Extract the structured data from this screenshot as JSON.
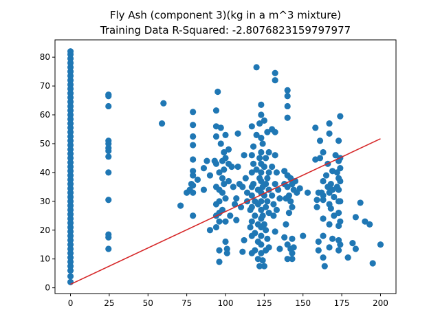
{
  "chart_data": {
    "type": "scatter",
    "title": "Fly Ash (component 3)(kg in a m^3 mixture)",
    "subtitle": "Training Data R-Squared: -2.8076823159797977",
    "xlabel": "",
    "ylabel": "",
    "xlim": [
      -10,
      210
    ],
    "ylim": [
      -2,
      86
    ],
    "xticks": [
      0,
      25,
      50,
      75,
      100,
      125,
      150,
      175,
      200
    ],
    "yticks": [
      0,
      10,
      20,
      30,
      40,
      50,
      60,
      70,
      80
    ],
    "grid": false,
    "legend": "none",
    "colors": {
      "points": "#1f77b4",
      "fit_line": "#d62728"
    },
    "series": [
      {
        "kind": "scatter",
        "points": [
          [
            0,
            2
          ],
          [
            0,
            4
          ],
          [
            0,
            6
          ],
          [
            0,
            7.5
          ],
          [
            0,
            9
          ],
          [
            0,
            10.5
          ],
          [
            0,
            12
          ],
          [
            0,
            13.5
          ],
          [
            0,
            15
          ],
          [
            0,
            16.5
          ],
          [
            0,
            18
          ],
          [
            0,
            19.5
          ],
          [
            0,
            21
          ],
          [
            0,
            22.5
          ],
          [
            0,
            24
          ],
          [
            0,
            25.5
          ],
          [
            0,
            27
          ],
          [
            0,
            28.5
          ],
          [
            0,
            30
          ],
          [
            0,
            31.5
          ],
          [
            0,
            33
          ],
          [
            0,
            34.5
          ],
          [
            0,
            36
          ],
          [
            0,
            37.5
          ],
          [
            0,
            39
          ],
          [
            0,
            40.5
          ],
          [
            0,
            42
          ],
          [
            0,
            43.5
          ],
          [
            0,
            45
          ],
          [
            0,
            46.5
          ],
          [
            0,
            48
          ],
          [
            0,
            49.5
          ],
          [
            0,
            51
          ],
          [
            0,
            52.5
          ],
          [
            0,
            54
          ],
          [
            0,
            55.5
          ],
          [
            0,
            57
          ],
          [
            0,
            58.5
          ],
          [
            0,
            60
          ],
          [
            0,
            61.5
          ],
          [
            0,
            63
          ],
          [
            0,
            64.5
          ],
          [
            0,
            66
          ],
          [
            0,
            67.5
          ],
          [
            0,
            69
          ],
          [
            0,
            70.5
          ],
          [
            0,
            72
          ],
          [
            0,
            73.5
          ],
          [
            0,
            75
          ],
          [
            0,
            76.5
          ],
          [
            0,
            78
          ],
          [
            0,
            79.5
          ],
          [
            0,
            81
          ],
          [
            0,
            82
          ],
          [
            24.5,
            13.5
          ],
          [
            24.5,
            17.5
          ],
          [
            24.5,
            18.5
          ],
          [
            24.5,
            30.5
          ],
          [
            24.5,
            40
          ],
          [
            24.5,
            45.5
          ],
          [
            24.5,
            47.5
          ],
          [
            24.5,
            48.5
          ],
          [
            24.5,
            50
          ],
          [
            24.5,
            51
          ],
          [
            24.5,
            63
          ],
          [
            24.5,
            66.5
          ],
          [
            24.5,
            67
          ],
          [
            59,
            57
          ],
          [
            60,
            64
          ],
          [
            71,
            28.5
          ],
          [
            75,
            33
          ],
          [
            77,
            34
          ],
          [
            78,
            36
          ],
          [
            79,
            25
          ],
          [
            79,
            39
          ],
          [
            79,
            44.5
          ],
          [
            79,
            49.5
          ],
          [
            79,
            52.5
          ],
          [
            79,
            56.5
          ],
          [
            79,
            61
          ],
          [
            79,
            40.5
          ],
          [
            79,
            35.5
          ],
          [
            79,
            33
          ],
          [
            82,
            37.5
          ],
          [
            86,
            41.5
          ],
          [
            86,
            34
          ],
          [
            88,
            44
          ],
          [
            90,
            39
          ],
          [
            90,
            20
          ],
          [
            93,
            44
          ],
          [
            94,
            61.5
          ],
          [
            94,
            56
          ],
          [
            94,
            52.5
          ],
          [
            94,
            43
          ],
          [
            94,
            35
          ],
          [
            94,
            29
          ],
          [
            94,
            25
          ],
          [
            94,
            21
          ],
          [
            95,
            68
          ],
          [
            96,
            40
          ],
          [
            96,
            34
          ],
          [
            96,
            30
          ],
          [
            96,
            26
          ],
          [
            96,
            23
          ],
          [
            96,
            13
          ],
          [
            96,
            9
          ],
          [
            97,
            55.5
          ],
          [
            97,
            50
          ],
          [
            98,
            44
          ],
          [
            98,
            38
          ],
          [
            98,
            33
          ],
          [
            98,
            27
          ],
          [
            99,
            47
          ],
          [
            99,
            41
          ],
          [
            99,
            36
          ],
          [
            100,
            53
          ],
          [
            100,
            45
          ],
          [
            100,
            31
          ],
          [
            100,
            23
          ],
          [
            100,
            16
          ],
          [
            101,
            13.5
          ],
          [
            101,
            12
          ],
          [
            102,
            48
          ],
          [
            102,
            43
          ],
          [
            102,
            37
          ],
          [
            103,
            25
          ],
          [
            104,
            42
          ],
          [
            105,
            35
          ],
          [
            106,
            29
          ],
          [
            107,
            31
          ],
          [
            107,
            23.5
          ],
          [
            108,
            53.5
          ],
          [
            108,
            42
          ],
          [
            109,
            36
          ],
          [
            110,
            28
          ],
          [
            111,
            35
          ],
          [
            111,
            12.5
          ],
          [
            112,
            16.5
          ],
          [
            112,
            46
          ],
          [
            113,
            38
          ],
          [
            114,
            33
          ],
          [
            114,
            30
          ],
          [
            116,
            27
          ],
          [
            116,
            21
          ],
          [
            117,
            56
          ],
          [
            117,
            46
          ],
          [
            117,
            40
          ],
          [
            117,
            35
          ],
          [
            117,
            32
          ],
          [
            117,
            28
          ],
          [
            117,
            23
          ],
          [
            117,
            18
          ],
          [
            117,
            12
          ],
          [
            118,
            49
          ],
          [
            118,
            43
          ],
          [
            118,
            36
          ],
          [
            119,
            30
          ],
          [
            119,
            25
          ],
          [
            119,
            19
          ],
          [
            119,
            13
          ],
          [
            120,
            76.5
          ],
          [
            120,
            53
          ],
          [
            120,
            41
          ],
          [
            121,
            34
          ],
          [
            121,
            29
          ],
          [
            121,
            22
          ],
          [
            121,
            16
          ],
          [
            121,
            10
          ],
          [
            122,
            7.5
          ],
          [
            122,
            57
          ],
          [
            122,
            45
          ],
          [
            122,
            38
          ],
          [
            123,
            63.5
          ],
          [
            123,
            60
          ],
          [
            123,
            52
          ],
          [
            123,
            47
          ],
          [
            123,
            43
          ],
          [
            123,
            40
          ],
          [
            123,
            37
          ],
          [
            123,
            33
          ],
          [
            123,
            30
          ],
          [
            123,
            27
          ],
          [
            123,
            24
          ],
          [
            123,
            21
          ],
          [
            123,
            18
          ],
          [
            123,
            15
          ],
          [
            123,
            12
          ],
          [
            124,
            50
          ],
          [
            124,
            35
          ],
          [
            124,
            25
          ],
          [
            124,
            9.5
          ],
          [
            125,
            58
          ],
          [
            125,
            42
          ],
          [
            125,
            32
          ],
          [
            125,
            22
          ],
          [
            125,
            7.5
          ],
          [
            126,
            45
          ],
          [
            126,
            36
          ],
          [
            126,
            28
          ],
          [
            126,
            20
          ],
          [
            126,
            13
          ],
          [
            127,
            54
          ],
          [
            127,
            38
          ],
          [
            127,
            30
          ],
          [
            127,
            17
          ],
          [
            128,
            47
          ],
          [
            128,
            40
          ],
          [
            128,
            34
          ],
          [
            128,
            26
          ],
          [
            128,
            14
          ],
          [
            130,
            55
          ],
          [
            130,
            42
          ],
          [
            130,
            32
          ],
          [
            131,
            29
          ],
          [
            131,
            25
          ],
          [
            132,
            74.5
          ],
          [
            132,
            72
          ],
          [
            132,
            54
          ],
          [
            132,
            46
          ],
          [
            132,
            36
          ],
          [
            132,
            19.5
          ],
          [
            133,
            40
          ],
          [
            133,
            27
          ],
          [
            134,
            34
          ],
          [
            135,
            31
          ],
          [
            135,
            13.5
          ],
          [
            138,
            40.5
          ],
          [
            138,
            36
          ],
          [
            138,
            17.5
          ],
          [
            139,
            31
          ],
          [
            139,
            22
          ],
          [
            140,
            68.5
          ],
          [
            140,
            66.5
          ],
          [
            140,
            63
          ],
          [
            140,
            59
          ],
          [
            140,
            39
          ],
          [
            140,
            35
          ],
          [
            140,
            15
          ],
          [
            140,
            10
          ],
          [
            141,
            32
          ],
          [
            141,
            26
          ],
          [
            142,
            38
          ],
          [
            142,
            30
          ],
          [
            142,
            13.5
          ],
          [
            143,
            36
          ],
          [
            143,
            28
          ],
          [
            143,
            17
          ],
          [
            143,
            12
          ],
          [
            143,
            10
          ],
          [
            144,
            34
          ],
          [
            144,
            14
          ],
          [
            145,
            37
          ],
          [
            146,
            33
          ],
          [
            148,
            34.5
          ],
          [
            150,
            18
          ],
          [
            153,
            33
          ],
          [
            158,
            55.5
          ],
          [
            158,
            44.5
          ],
          [
            159,
            30.5
          ],
          [
            159,
            28
          ],
          [
            160,
            33
          ],
          [
            160,
            16
          ],
          [
            160,
            13
          ],
          [
            161,
            51
          ],
          [
            161,
            45
          ],
          [
            162,
            33
          ],
          [
            163,
            47
          ],
          [
            163,
            37
          ],
          [
            163,
            32
          ],
          [
            163,
            30.5
          ],
          [
            163,
            24
          ],
          [
            163,
            18
          ],
          [
            163,
            10.5
          ],
          [
            164,
            7.5
          ],
          [
            165,
            39
          ],
          [
            166,
            43
          ],
          [
            166,
            35
          ],
          [
            167,
            57
          ],
          [
            167,
            53.5
          ],
          [
            167,
            33
          ],
          [
            167,
            29
          ],
          [
            167,
            22
          ],
          [
            167,
            14
          ],
          [
            168,
            36
          ],
          [
            168,
            27.5
          ],
          [
            169,
            40.5
          ],
          [
            169,
            34
          ],
          [
            169,
            17
          ],
          [
            170,
            31.5
          ],
          [
            170,
            25
          ],
          [
            171,
            46
          ],
          [
            172,
            40
          ],
          [
            172,
            35
          ],
          [
            173,
            51
          ],
          [
            173,
            44
          ],
          [
            173,
            38
          ],
          [
            173,
            34
          ],
          [
            173,
            30
          ],
          [
            173,
            26
          ],
          [
            173,
            21.5
          ],
          [
            173,
            16.5
          ],
          [
            173,
            13
          ],
          [
            174,
            59.5
          ],
          [
            174,
            45
          ],
          [
            174,
            41.5
          ],
          [
            174,
            37
          ],
          [
            174,
            30
          ],
          [
            174,
            23
          ],
          [
            174,
            15
          ],
          [
            179,
            10.5
          ],
          [
            182,
            15.5
          ],
          [
            184,
            24.5
          ],
          [
            184,
            13.5
          ],
          [
            187,
            29.5
          ],
          [
            190,
            23
          ],
          [
            193,
            22
          ],
          [
            195,
            8.5
          ],
          [
            200,
            15
          ]
        ]
      },
      {
        "kind": "line",
        "points": [
          [
            0,
            1.2
          ],
          [
            200,
            51.7
          ]
        ]
      }
    ]
  }
}
